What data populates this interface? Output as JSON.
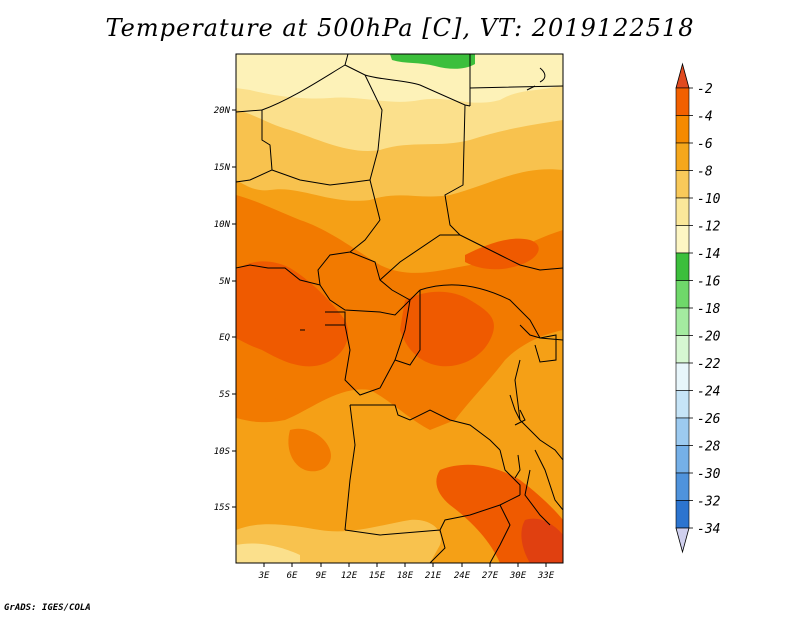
{
  "title": "Temperature at 500hPa [C], VT: 2019122518",
  "footer": "GrADS: IGES/COLA",
  "map": {
    "lon_ticks": [
      "3E",
      "6E",
      "9E",
      "12E",
      "15E",
      "18E",
      "21E",
      "24E",
      "27E",
      "30E",
      "33E"
    ],
    "lat_ticks": [
      "20N",
      "15N",
      "10N",
      "5N",
      "EQ",
      "5S",
      "10S",
      "15S"
    ]
  },
  "colorbar": {
    "labels": [
      "-2",
      "-4",
      "-6",
      "-8",
      "-10",
      "-12",
      "-14",
      "-16",
      "-18",
      "-20",
      "-22",
      "-24",
      "-26",
      "-28",
      "-30",
      "-32",
      "-34"
    ],
    "colors": [
      "#e03a10",
      "#f26000",
      "#f58a00",
      "#f5a71c",
      "#f8c95a",
      "#fbe89a",
      "#fdf6c4",
      "#3cbf3c",
      "#6fd86a",
      "#a4eba0",
      "#d6f7d2",
      "#e8f6fb",
      "#c6e4f7",
      "#9ccaf0",
      "#75b0e8",
      "#4f93dc",
      "#2c74cf",
      "#1a56bf",
      "#0f3aa8",
      "#0a1f80"
    ],
    "top_arrow_color": "#e04a20",
    "bottom_arrow_color": "#d0d0ee"
  }
}
